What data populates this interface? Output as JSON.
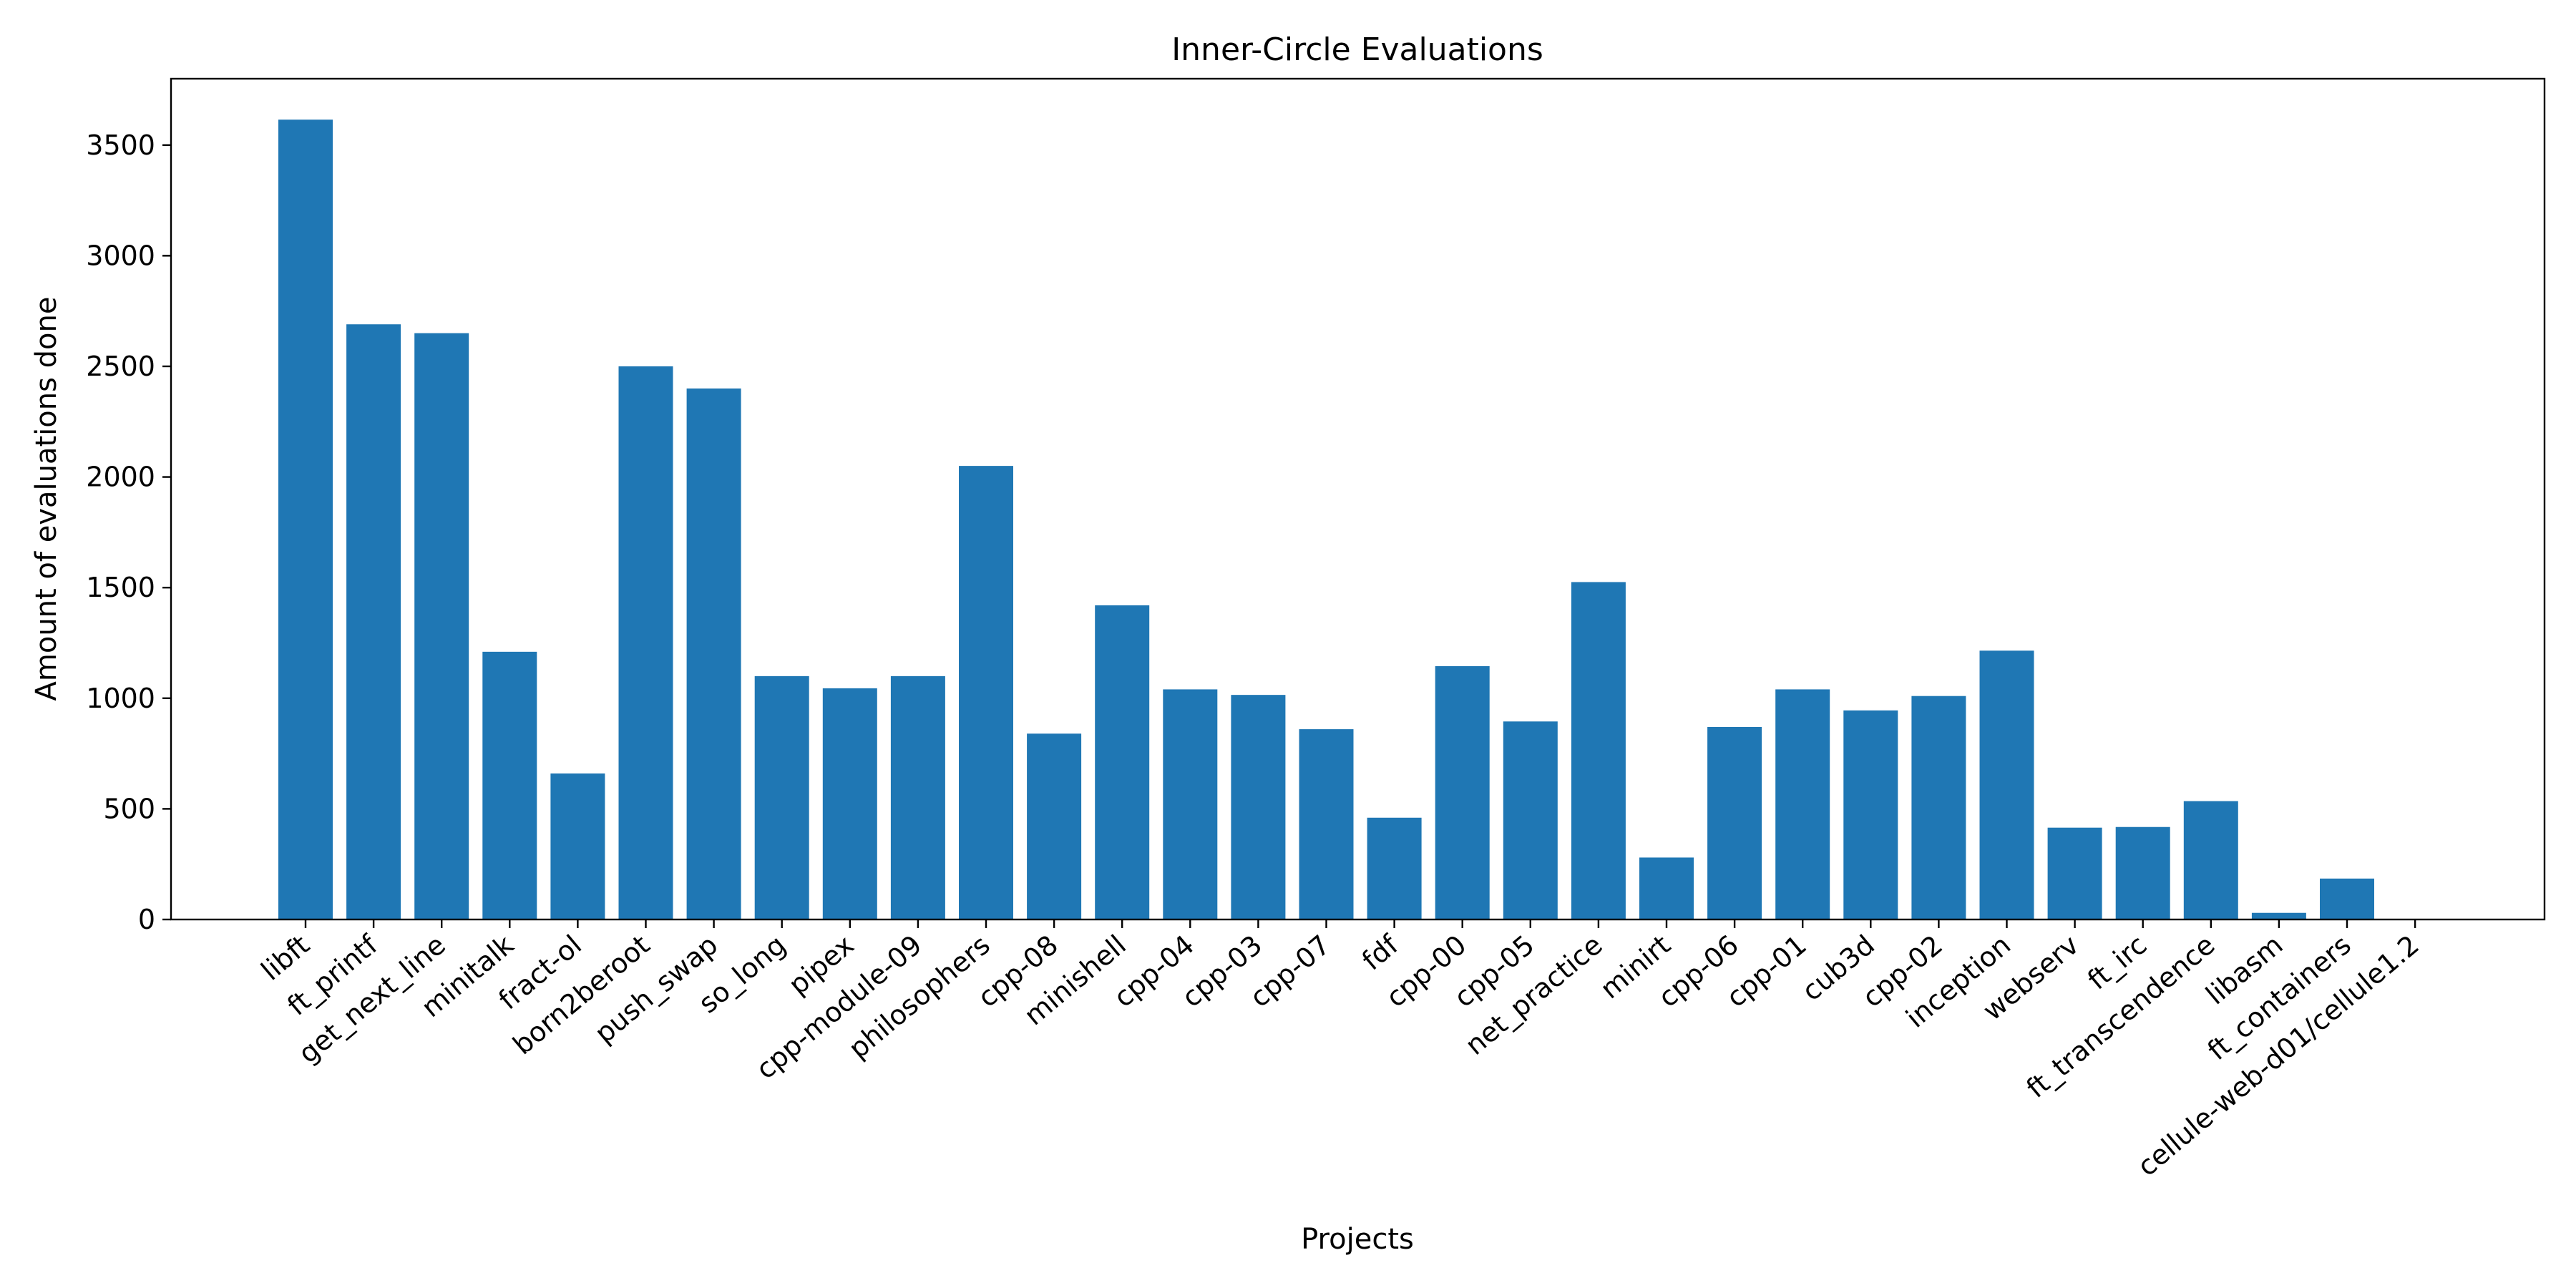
{
  "chart_data": {
    "type": "bar",
    "title": "Inner-Circle Evaluations",
    "xlabel": "Projects",
    "ylabel": "Amount of evaluations done",
    "categories": [
      "libft",
      "ft_printf",
      "get_next_line",
      "minitalk",
      "fract-ol",
      "born2beroot",
      "push_swap",
      "so_long",
      "pipex",
      "cpp-module-09",
      "philosophers",
      "cpp-08",
      "minishell",
      "cpp-04",
      "cpp-03",
      "cpp-07",
      "fdf",
      "cpp-00",
      "cpp-05",
      "net_practice",
      "minirt",
      "cpp-06",
      "cpp-01",
      "cub3d",
      "cpp-02",
      "inception",
      "webserv",
      "ft_irc",
      "ft_transcendence",
      "libasm",
      "ft_containers",
      "cellule-web-d01/cellule1.2"
    ],
    "values": [
      3615,
      2690,
      2650,
      1210,
      660,
      2500,
      2400,
      1100,
      1045,
      1100,
      2050,
      840,
      1420,
      1040,
      1015,
      860,
      460,
      1145,
      895,
      1525,
      280,
      870,
      1040,
      945,
      1010,
      1215,
      415,
      418,
      535,
      30,
      185,
      0
    ],
    "yticks": [
      0,
      500,
      1000,
      1500,
      2000,
      2500,
      3000,
      3500
    ],
    "ylim": [
      0,
      3800
    ],
    "bar_color": "#1f77b4",
    "grid": false,
    "legend": "none"
  }
}
